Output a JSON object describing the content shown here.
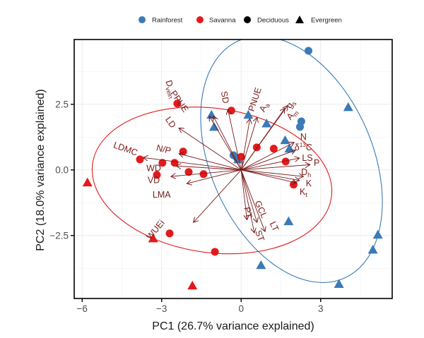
{
  "chart_data": {
    "type": "scatter",
    "subtype": "pca-biplot",
    "title": "",
    "xlabel": "PC1 (26.7% variance explained)",
    "ylabel": "PC2 (18.0% variance explained)",
    "xlim": [
      -6.3,
      5.7
    ],
    "ylim": [
      -4.9,
      4.97
    ],
    "xticks": [
      -6,
      -3,
      0,
      3
    ],
    "xtick_labels": [
      "−6",
      "−3",
      "0",
      "3"
    ],
    "yticks": [
      -2.5,
      0,
      2.5
    ],
    "ytick_labels": [
      "−2.5",
      "0.0",
      "2.5"
    ],
    "grid": true,
    "legend": {
      "position": "top",
      "entries": [
        {
          "label": "Rainforest",
          "kind": "color",
          "color": "#3a7ab8"
        },
        {
          "label": "Savanna",
          "kind": "color",
          "color": "#e31a1c"
        },
        {
          "label": "Deciduous",
          "kind": "shape",
          "shape": "circle"
        },
        {
          "label": "Evergreen",
          "kind": "shape",
          "shape": "triangle"
        }
      ]
    },
    "colors": {
      "Rainforest": "#3a7ab8",
      "Savanna": "#e31a1c",
      "arrow": "#7a1a1a"
    },
    "series": [
      {
        "name": "Rainforest",
        "points": [
          {
            "x": 2.54,
            "y": 4.54,
            "shape": "circle"
          },
          {
            "x": 2.27,
            "y": 1.85,
            "shape": "circle"
          },
          {
            "x": 2.22,
            "y": 1.64,
            "shape": "circle"
          },
          {
            "x": -0.29,
            "y": 0.56,
            "shape": "circle"
          },
          {
            "x": -0.16,
            "y": 0.46,
            "shape": "circle"
          },
          {
            "x": -1.12,
            "y": 2.1,
            "shape": "triangle"
          },
          {
            "x": -1.02,
            "y": 1.64,
            "shape": "triangle"
          },
          {
            "x": 0.27,
            "y": 2.1,
            "shape": "triangle"
          },
          {
            "x": 0.96,
            "y": 1.77,
            "shape": "triangle"
          },
          {
            "x": 1.66,
            "y": 1.13,
            "shape": "triangle"
          },
          {
            "x": 1.82,
            "y": 0.81,
            "shape": "triangle"
          },
          {
            "x": 4.04,
            "y": 2.39,
            "shape": "triangle"
          },
          {
            "x": 5.16,
            "y": -2.47,
            "shape": "triangle"
          },
          {
            "x": 4.97,
            "y": -3.04,
            "shape": "triangle"
          },
          {
            "x": 1.79,
            "y": -1.96,
            "shape": "triangle"
          },
          {
            "x": 0.75,
            "y": -3.63,
            "shape": "triangle"
          },
          {
            "x": 3.69,
            "y": -4.35,
            "shape": "triangle"
          },
          {
            "x": -0.11,
            "y": 0.4,
            "shape": "triangle"
          }
        ],
        "ellipse": {
          "cx": 1.9,
          "cy": 0.4,
          "rx": 3.05,
          "ry": 4.95,
          "angle_deg": -24
        }
      },
      {
        "name": "Savanna",
        "points": [
          {
            "x": -2.41,
            "y": 2.53,
            "shape": "circle"
          },
          {
            "x": -0.37,
            "y": 2.26,
            "shape": "circle"
          },
          {
            "x": 0.59,
            "y": 0.86,
            "shape": "circle"
          },
          {
            "x": 1.23,
            "y": 0.81,
            "shape": "circle"
          },
          {
            "x": 1.68,
            "y": 0.32,
            "shape": "circle"
          },
          {
            "x": 1.98,
            "y": -0.56,
            "shape": "circle"
          },
          {
            "x": -2.19,
            "y": 0.7,
            "shape": "circle"
          },
          {
            "x": -3.82,
            "y": 0.4,
            "shape": "circle"
          },
          {
            "x": -2.97,
            "y": 0.27,
            "shape": "circle"
          },
          {
            "x": -2.51,
            "y": 0.27,
            "shape": "circle"
          },
          {
            "x": -3.18,
            "y": -0.19,
            "shape": "circle"
          },
          {
            "x": -1.98,
            "y": -0.08,
            "shape": "circle"
          },
          {
            "x": -1.42,
            "y": -0.16,
            "shape": "circle"
          },
          {
            "x": -2.7,
            "y": -2.42,
            "shape": "circle"
          },
          {
            "x": -0.99,
            "y": -3.12,
            "shape": "circle"
          },
          {
            "x": 0.0,
            "y": 0.5,
            "shape": "circle"
          },
          {
            "x": -5.8,
            "y": -0.48,
            "shape": "triangle"
          },
          {
            "x": -3.32,
            "y": -2.61,
            "shape": "triangle"
          },
          {
            "x": -1.84,
            "y": -4.41,
            "shape": "triangle"
          }
        ],
        "ellipse": {
          "cx": -1.1,
          "cy": -0.4,
          "rx": 4.55,
          "ry": 2.75,
          "angle_deg": 8
        }
      }
    ],
    "loadings": [
      {
        "label": "Dvein",
        "label_sub": "vein",
        "label_main": "D",
        "x": -1.05,
        "y": 2.05,
        "lx": -2.75,
        "ly": 3.05,
        "rot": 73
      },
      {
        "label": "PPUE",
        "x": -1.2,
        "y": 2.05,
        "lx": -2.42,
        "ly": 2.55,
        "rot": 55
      },
      {
        "label": "SD",
        "x": -0.5,
        "y": 2.3,
        "lx": -0.72,
        "ly": 2.75,
        "rot": 80
      },
      {
        "label": "PNUE",
        "x": 0.33,
        "y": 1.95,
        "lx": 0.62,
        "ly": 2.65,
        "rot": -72
      },
      {
        "label": "Aa",
        "label_main": "A",
        "label_sub": "a",
        "x": 0.6,
        "y": 2.0,
        "lx": 0.95,
        "ly": 2.35,
        "rot": -65
      },
      {
        "label": "gs",
        "label_main": "g",
        "label_sub": "s",
        "x": 1.75,
        "y": 2.45,
        "lx": 1.95,
        "ly": 2.45,
        "rot": -58
      },
      {
        "label": "Am",
        "label_main": "A",
        "label_sub": "m",
        "x": 1.65,
        "y": 2.35,
        "lx": 2.0,
        "ly": 2.05,
        "rot": -50
      },
      {
        "label": "LD",
        "x": -2.35,
        "y": 1.6,
        "lx": -2.75,
        "ly": 1.75,
        "rot": 55
      },
      {
        "label": "N",
        "x": 2.0,
        "y": 1.05,
        "lx": 2.35,
        "ly": 1.15,
        "rot": 0
      },
      {
        "label": "δ13C",
        "label_main": "δ",
        "label_sup": "13",
        "label_tail": "C",
        "x": 2.05,
        "y": 0.75,
        "lx": 2.35,
        "ly": 0.75,
        "rot": 0
      },
      {
        "label": "LS",
        "x": 2.2,
        "y": 0.45,
        "lx": 2.5,
        "ly": 0.35,
        "rot": 0
      },
      {
        "label": "P",
        "x": 2.6,
        "y": 0.2,
        "lx": 2.85,
        "ly": 0.15,
        "rot": 0
      },
      {
        "label": "Dh",
        "label_main": "D",
        "label_sub": "h",
        "x": 2.35,
        "y": -0.25,
        "lx": 2.45,
        "ly": -0.2,
        "rot": 0
      },
      {
        "label": "K",
        "x": 2.2,
        "y": -0.4,
        "lx": 2.55,
        "ly": -0.62,
        "rot": 0
      },
      {
        "label": "Kt",
        "label_main": "K",
        "label_sub": "t",
        "x": 2.1,
        "y": -0.5,
        "lx": 2.35,
        "ly": -0.95,
        "rot": 0
      },
      {
        "label": "N/P",
        "x": -2.35,
        "y": 0.62,
        "lx": -2.95,
        "ly": 0.68,
        "rot": 15
      },
      {
        "label": "LDMC",
        "x": -3.7,
        "y": 0.47,
        "lx": -4.4,
        "ly": 0.7,
        "rot": 20
      },
      {
        "label": "WD",
        "x": -2.45,
        "y": 0.15,
        "lx": -3.3,
        "ly": -0.05,
        "rot": 0
      },
      {
        "label": "VD",
        "x": -2.65,
        "y": -0.25,
        "lx": -3.3,
        "ly": -0.5,
        "rot": 0
      },
      {
        "label": "LMA",
        "x": -2.05,
        "y": -0.52,
        "lx": -3.0,
        "ly": -1.05,
        "rot": 0
      },
      {
        "label": "WUEi",
        "x": -1.8,
        "y": -2.0,
        "lx": -3.15,
        "ly": -2.35,
        "rot": -50
      },
      {
        "label": "PT",
        "x": 0.22,
        "y": -1.9,
        "lx": 0.15,
        "ly": -1.65,
        "rot": 78
      },
      {
        "label": "GCL",
        "x": 0.6,
        "y": -2.0,
        "lx": 0.65,
        "ly": -1.55,
        "rot": 65
      },
      {
        "label": "LT",
        "x": 0.9,
        "y": -2.35,
        "lx": 1.15,
        "ly": -2.2,
        "rot": 65
      },
      {
        "label": "ST",
        "x": 0.5,
        "y": -2.4,
        "lx": 0.6,
        "ly": -2.55,
        "rot": 70
      }
    ]
  }
}
